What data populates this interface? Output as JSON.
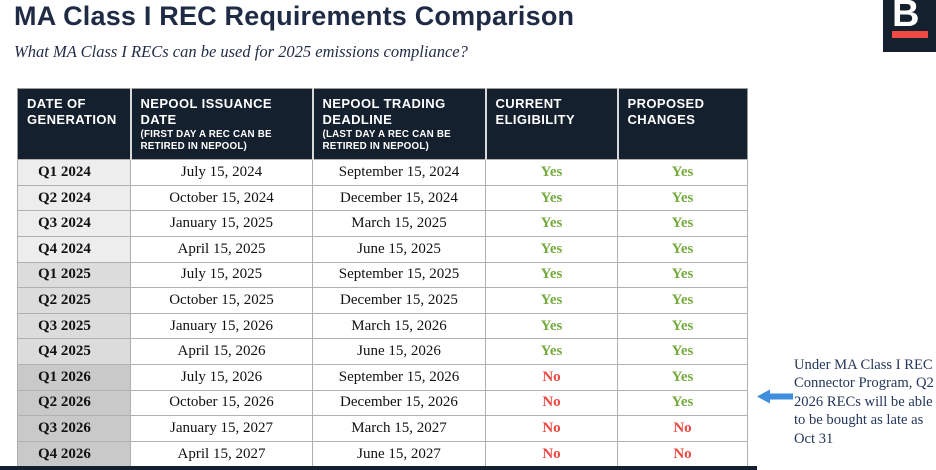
{
  "header": {
    "title": "MA Class I REC Requirements Comparison",
    "subtitle": "What MA Class I RECs can be used for 2025 emissions compliance?",
    "logo_letter": "B"
  },
  "colors": {
    "navy": "#14202e",
    "title_navy": "#1f2b45",
    "yes_green": "#77ab40",
    "no_red": "#ef4842",
    "arrow_blue": "#3e8ede",
    "logo_red": "#f04b42",
    "gen_col_2024": "#ededed",
    "gen_col_2025": "#dcdcdc",
    "gen_col_2026": "#c9c9c9"
  },
  "table": {
    "columns": [
      {
        "label": "DATE OF GENERATION",
        "note": ""
      },
      {
        "label": "NEPOOL ISSUANCE DATE",
        "note": "(FIRST DAY A REC CAN BE RETIRED IN NEPOOL)"
      },
      {
        "label": "NEPOOL TRADING DEADLINE",
        "note": "(LAST DAY A REC CAN BE RETIRED IN NEPOOL)"
      },
      {
        "label": "CURRENT ELIGIBILITY",
        "note": ""
      },
      {
        "label": "PROPOSED CHANGES",
        "note": ""
      }
    ],
    "rows": [
      {
        "generation": "Q1 2024",
        "issuance_date": "July 15, 2024",
        "trading_deadline": "September 15, 2024",
        "current_eligibility": "Yes",
        "proposed_changes": "Yes"
      },
      {
        "generation": "Q2 2024",
        "issuance_date": "October 15, 2024",
        "trading_deadline": "December 15, 2024",
        "current_eligibility": "Yes",
        "proposed_changes": "Yes"
      },
      {
        "generation": "Q3 2024",
        "issuance_date": "January 15, 2025",
        "trading_deadline": "March 15, 2025",
        "current_eligibility": "Yes",
        "proposed_changes": "Yes"
      },
      {
        "generation": "Q4 2024",
        "issuance_date": "April 15, 2025",
        "trading_deadline": "June 15, 2025",
        "current_eligibility": "Yes",
        "proposed_changes": "Yes"
      },
      {
        "generation": "Q1 2025",
        "issuance_date": "July 15, 2025",
        "trading_deadline": "September 15, 2025",
        "current_eligibility": "Yes",
        "proposed_changes": "Yes"
      },
      {
        "generation": "Q2 2025",
        "issuance_date": "October 15, 2025",
        "trading_deadline": "December 15, 2025",
        "current_eligibility": "Yes",
        "proposed_changes": "Yes"
      },
      {
        "generation": "Q3 2025",
        "issuance_date": "January 15, 2026",
        "trading_deadline": "March 15, 2026",
        "current_eligibility": "Yes",
        "proposed_changes": "Yes"
      },
      {
        "generation": "Q4 2025",
        "issuance_date": "April 15, 2026",
        "trading_deadline": "June 15, 2026",
        "current_eligibility": "Yes",
        "proposed_changes": "Yes"
      },
      {
        "generation": "Q1 2026",
        "issuance_date": "July 15, 2026",
        "trading_deadline": "September 15, 2026",
        "current_eligibility": "No",
        "proposed_changes": "Yes"
      },
      {
        "generation": "Q2 2026",
        "issuance_date": "October 15, 2026",
        "trading_deadline": "December 15, 2026",
        "current_eligibility": "No",
        "proposed_changes": "Yes"
      },
      {
        "generation": "Q3 2026",
        "issuance_date": "January 15, 2027",
        "trading_deadline": "March 15, 2027",
        "current_eligibility": "No",
        "proposed_changes": "No"
      },
      {
        "generation": "Q4 2026",
        "issuance_date": "April 15, 2027",
        "trading_deadline": "June 15, 2027",
        "current_eligibility": "No",
        "proposed_changes": "No"
      }
    ]
  },
  "annotation": {
    "text": "Under MA Class I REC Connector Program, Q2 2026 RECs will be able to be bought as late as Oct 31"
  }
}
